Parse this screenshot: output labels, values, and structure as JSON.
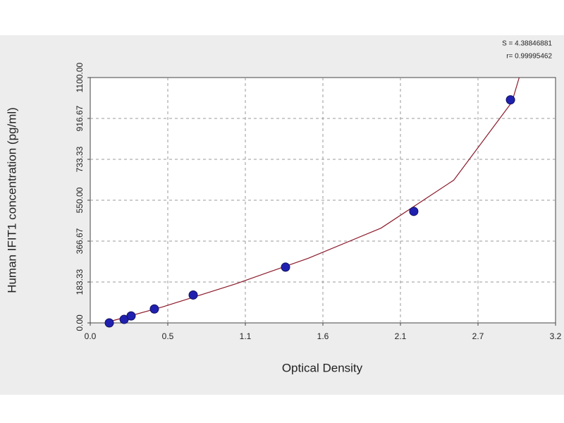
{
  "chart_data": {
    "type": "scatter",
    "x_label": "Optical Density",
    "y_label": "Human IFIT1 concentration (pg/ml)",
    "annotations": [
      "S = 4.38846881",
      "r= 0.99995462"
    ],
    "xlim": [
      0,
      3.2
    ],
    "ylim": [
      0,
      1100
    ],
    "xticks": [
      {
        "value": 0,
        "label": "0.0"
      },
      {
        "value": 0.5333,
        "label": "0.5"
      },
      {
        "value": 1.0667,
        "label": "1.1"
      },
      1.6,
      {
        "value": 2.1333,
        "label": "2.1"
      },
      {
        "value": 2.6667,
        "label": "2.7"
      },
      3.2
    ],
    "yticks": [
      {
        "value": 0,
        "label": "0.00"
      },
      {
        "value": 183.33,
        "label": "183.33"
      },
      {
        "value": 366.67,
        "label": "366.67"
      },
      {
        "value": 550,
        "label": "550.00"
      },
      {
        "value": 733.33,
        "label": "733.33"
      },
      {
        "value": 916.67,
        "label": "916.67"
      },
      {
        "value": 1100,
        "label": "1100.00"
      }
    ],
    "grid": true,
    "series": [
      {
        "style": "line",
        "color": "#8b1a2a",
        "x": [
          0.1,
          0.5,
          1.0,
          1.5,
          2.0,
          2.5,
          2.9,
          2.95
        ],
        "values": [
          0,
          72,
          175,
          290,
          425,
          640,
          990,
          1100
        ]
      },
      {
        "style": "marker",
        "color": "#2020b0",
        "x": [
          0.131,
          0.233,
          0.281,
          0.441,
          0.708,
          1.343,
          2.225,
          2.89
        ],
        "values": [
          0,
          15.63,
          31.25,
          62.5,
          125,
          250,
          500,
          1000
        ]
      }
    ]
  }
}
